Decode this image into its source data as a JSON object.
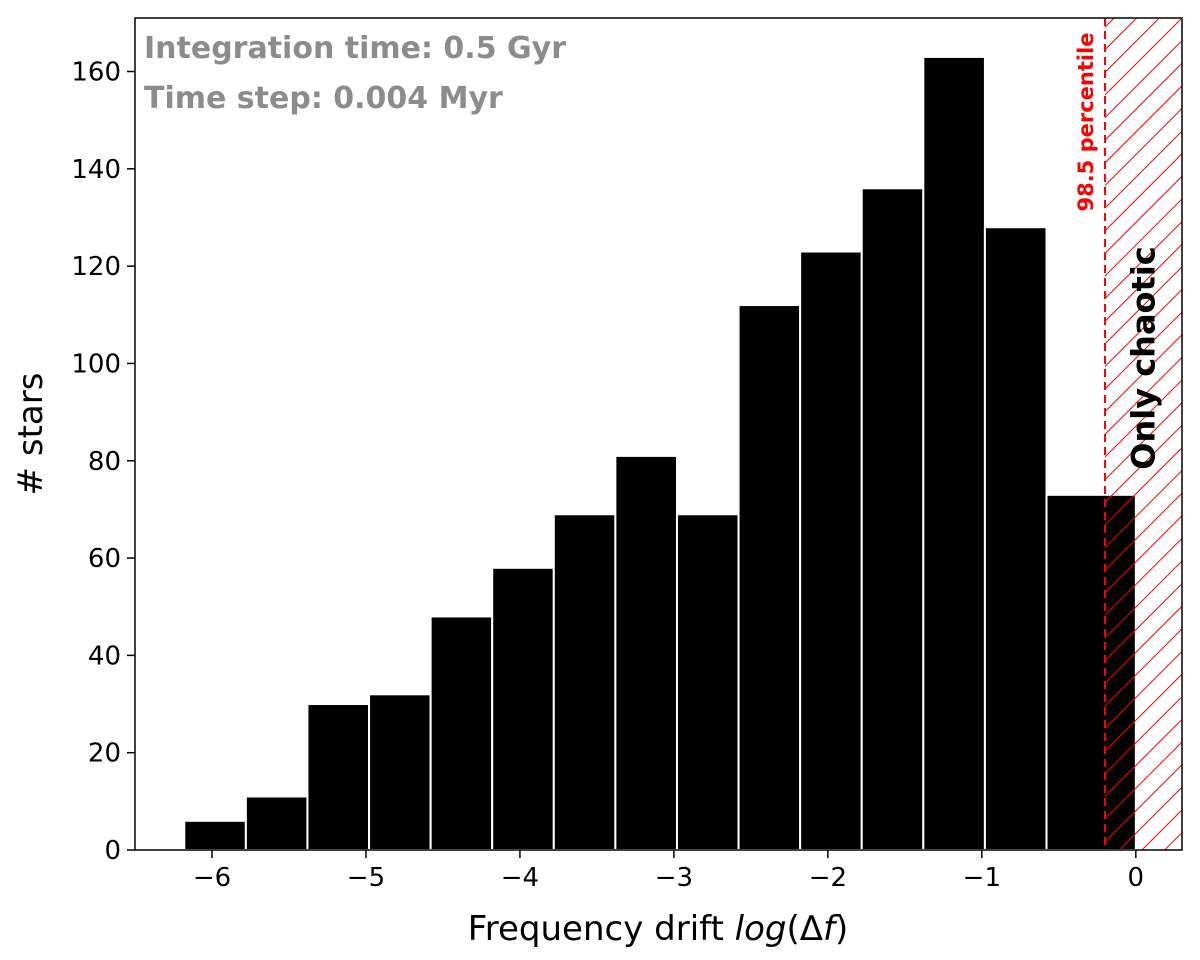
{
  "chart_data": {
    "type": "bar",
    "xlabel_prefix": "Frequency drift ",
    "xlabel_italic": "log",
    "xlabel_mid": "(Δ",
    "xlabel_italic2": "f",
    "xlabel_suffix": ")",
    "ylabel": "# stars",
    "xlim": [
      -6.5,
      0.3
    ],
    "ylim": [
      0,
      171
    ],
    "xticks": [
      -6,
      -5,
      -4,
      -3,
      -2,
      -1,
      0
    ],
    "xtick_labels": [
      "−6",
      "−5",
      "−4",
      "−3",
      "−2",
      "−1",
      "0"
    ],
    "yticks": [
      0,
      20,
      40,
      60,
      80,
      100,
      120,
      140,
      160
    ],
    "ytick_labels": [
      "0",
      "20",
      "40",
      "60",
      "80",
      "100",
      "120",
      "140",
      "160"
    ],
    "bins": [
      {
        "x0": -6.18,
        "x1": -5.78,
        "value": 6
      },
      {
        "x0": -5.78,
        "x1": -5.38,
        "value": 11
      },
      {
        "x0": -5.38,
        "x1": -4.98,
        "value": 30
      },
      {
        "x0": -4.98,
        "x1": -4.58,
        "value": 32
      },
      {
        "x0": -4.58,
        "x1": -4.18,
        "value": 48
      },
      {
        "x0": -4.18,
        "x1": -3.78,
        "value": 58
      },
      {
        "x0": -3.78,
        "x1": -3.38,
        "value": 69
      },
      {
        "x0": -3.38,
        "x1": -2.98,
        "value": 81
      },
      {
        "x0": -2.98,
        "x1": -2.58,
        "value": 69
      },
      {
        "x0": -2.58,
        "x1": -2.18,
        "value": 112
      },
      {
        "x0": -2.18,
        "x1": -1.78,
        "value": 123
      },
      {
        "x0": -1.78,
        "x1": -1.38,
        "value": 136
      },
      {
        "x0": -1.38,
        "x1": -0.98,
        "value": 163
      },
      {
        "x0": -0.98,
        "x1": -0.58,
        "value": 128
      },
      {
        "x0": -0.58,
        "x1": 0.0,
        "value": 73
      }
    ],
    "bar_color": "#000000",
    "bar_edge_color": "#ffffff",
    "percentile_line_x": -0.2,
    "percentile_label": "98.5 percentile",
    "percentile_color": "#ff0000",
    "region_label": "Only chaotic",
    "annotations": [
      "Integration time: 0.5 Gyr",
      "Time step: 0.004 Myr"
    ]
  }
}
